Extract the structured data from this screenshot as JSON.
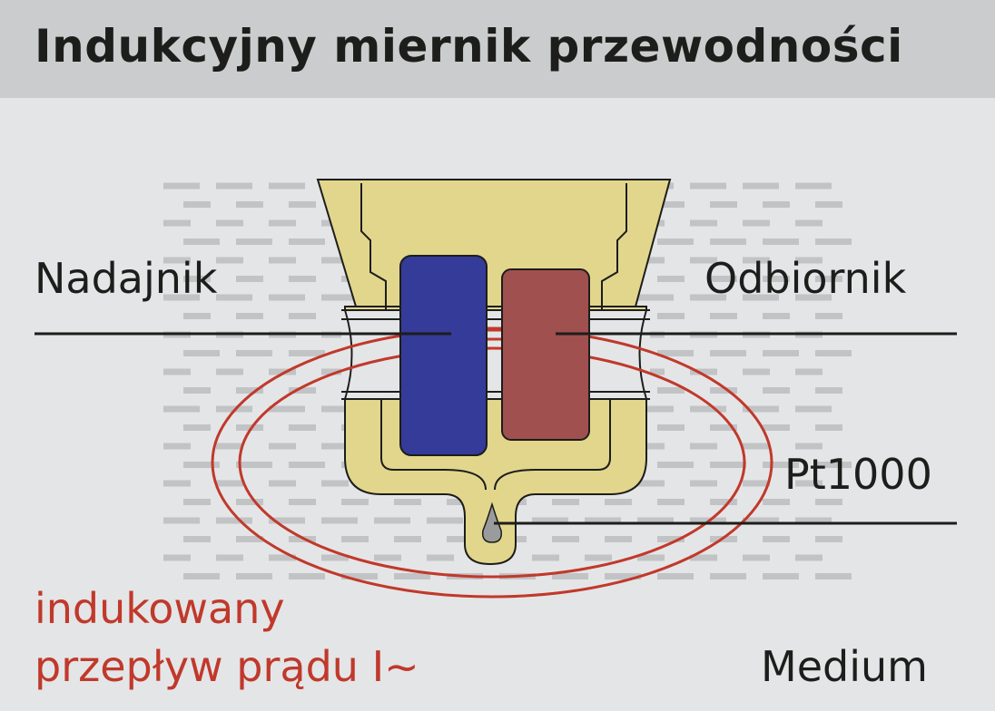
{
  "title": "Indukcyjny miernik przewodności",
  "labels": {
    "transmitter": "Nadajnik",
    "receiver": "Odbiornik",
    "sensor": "Pt1000",
    "current_line1": "indukowany",
    "current_line2": "przepływ prądu I~",
    "medium": "Medium"
  },
  "colors": {
    "background": "#e4e5e7",
    "header": "#cbcccd",
    "housing": "#e2d68c",
    "transmitter_coil": "#343b99",
    "receiver_coil": "#a0504f",
    "current_loop": "#c0392b",
    "medium_dash": "#c2c3c5",
    "lines": "#1d1d1b"
  }
}
